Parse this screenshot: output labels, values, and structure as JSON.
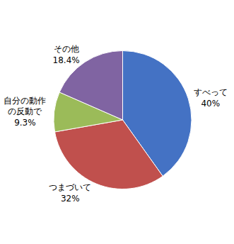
{
  "chart_data": {
    "type": "pie",
    "categories": [
      "すべって",
      "つまづいて",
      "自分の動作\nの反動で",
      "その他"
    ],
    "values": [
      40.0,
      32.0,
      9.3,
      18.4
    ],
    "value_labels": [
      "40%",
      "32%",
      "9.3%",
      "18.4%"
    ],
    "colors": [
      "#4472C4",
      "#C0504D",
      "#9BBB59",
      "#8064A2"
    ]
  }
}
